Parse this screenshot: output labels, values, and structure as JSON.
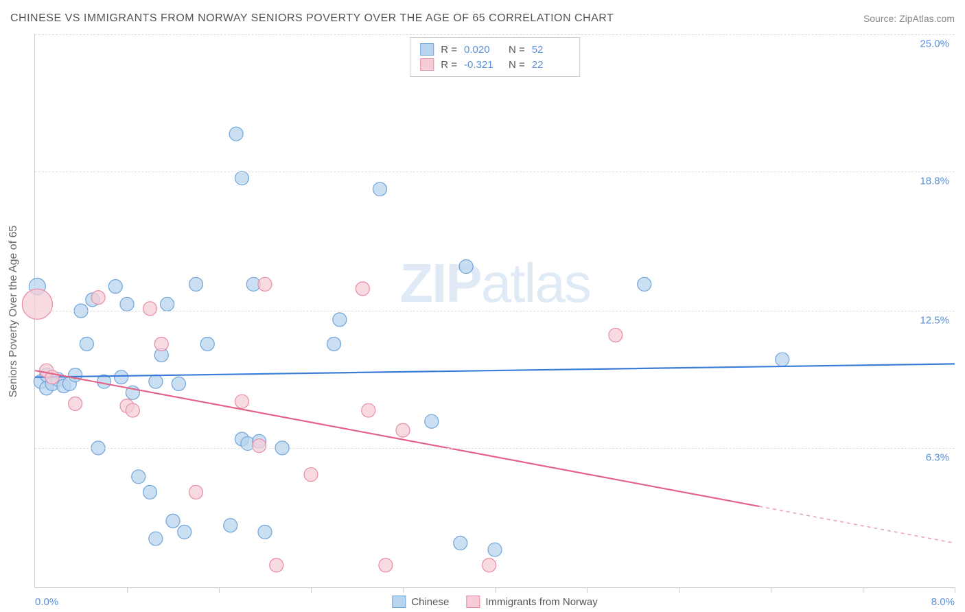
{
  "title": "CHINESE VS IMMIGRANTS FROM NORWAY SENIORS POVERTY OVER THE AGE OF 65 CORRELATION CHART",
  "source": "Source: ZipAtlas.com",
  "watermark_a": "ZIP",
  "watermark_b": "atlas",
  "y_axis_label": "Seniors Poverty Over the Age of 65",
  "chart": {
    "type": "scatter",
    "xlim": [
      0.0,
      8.0
    ],
    "ylim": [
      0.0,
      25.0
    ],
    "x_ticks": [
      0.8,
      1.6,
      2.4,
      3.2,
      4.0,
      4.8,
      5.6,
      6.4,
      7.2,
      8.0
    ],
    "x_min_label": "0.0%",
    "x_max_label": "8.0%",
    "y_gridlines": [
      6.3,
      12.5,
      18.8,
      25.0
    ],
    "y_tick_labels": [
      "6.3%",
      "12.5%",
      "18.8%",
      "25.0%"
    ],
    "background_color": "#ffffff",
    "grid_color": "#dddddd",
    "axis_color": "#cccccc",
    "tick_label_color": "#5b8fd6",
    "series": [
      {
        "name": "Chinese",
        "color_fill": "#b9d4ef",
        "color_stroke": "#6fa4d9",
        "line_color": "#3b7dd8",
        "r_value": "0.020",
        "n_value": "52",
        "regression": {
          "x1": 0.0,
          "y1": 9.5,
          "x2": 8.0,
          "y2": 10.1,
          "dash_from_x": 8.0
        },
        "marker_radius": 10,
        "points": [
          {
            "x": 0.02,
            "y": 13.6,
            "r": 12
          },
          {
            "x": 0.05,
            "y": 9.3,
            "r": 10
          },
          {
            "x": 0.1,
            "y": 9.0,
            "r": 10
          },
          {
            "x": 0.1,
            "y": 9.6,
            "r": 10
          },
          {
            "x": 0.15,
            "y": 9.2,
            "r": 10
          },
          {
            "x": 0.2,
            "y": 9.4,
            "r": 10
          },
          {
            "x": 0.25,
            "y": 9.1,
            "r": 10
          },
          {
            "x": 0.3,
            "y": 9.2,
            "r": 10
          },
          {
            "x": 0.35,
            "y": 9.6,
            "r": 10
          },
          {
            "x": 0.4,
            "y": 12.5,
            "r": 10
          },
          {
            "x": 0.45,
            "y": 11.0,
            "r": 10
          },
          {
            "x": 0.5,
            "y": 13.0,
            "r": 10
          },
          {
            "x": 0.55,
            "y": 6.3,
            "r": 10
          },
          {
            "x": 0.6,
            "y": 9.3,
            "r": 10
          },
          {
            "x": 0.7,
            "y": 13.6,
            "r": 10
          },
          {
            "x": 0.75,
            "y": 9.5,
            "r": 10
          },
          {
            "x": 0.8,
            "y": 12.8,
            "r": 10
          },
          {
            "x": 0.85,
            "y": 8.8,
            "r": 10
          },
          {
            "x": 0.9,
            "y": 5.0,
            "r": 10
          },
          {
            "x": 1.0,
            "y": 4.3,
            "r": 10
          },
          {
            "x": 1.05,
            "y": 9.3,
            "r": 10
          },
          {
            "x": 1.05,
            "y": 2.2,
            "r": 10
          },
          {
            "x": 1.1,
            "y": 10.5,
            "r": 10
          },
          {
            "x": 1.15,
            "y": 12.8,
            "r": 10
          },
          {
            "x": 1.2,
            "y": 3.0,
            "r": 10
          },
          {
            "x": 1.25,
            "y": 9.2,
            "r": 10
          },
          {
            "x": 1.3,
            "y": 2.5,
            "r": 10
          },
          {
            "x": 1.4,
            "y": 13.7,
            "r": 10
          },
          {
            "x": 1.5,
            "y": 11.0,
            "r": 10
          },
          {
            "x": 1.7,
            "y": 2.8,
            "r": 10
          },
          {
            "x": 1.75,
            "y": 20.5,
            "r": 10
          },
          {
            "x": 1.8,
            "y": 6.7,
            "r": 10
          },
          {
            "x": 1.8,
            "y": 18.5,
            "r": 10
          },
          {
            "x": 1.85,
            "y": 6.5,
            "r": 10
          },
          {
            "x": 1.9,
            "y": 13.7,
            "r": 10
          },
          {
            "x": 1.95,
            "y": 6.6,
            "r": 10
          },
          {
            "x": 2.0,
            "y": 2.5,
            "r": 10
          },
          {
            "x": 2.15,
            "y": 6.3,
            "r": 10
          },
          {
            "x": 2.6,
            "y": 11.0,
            "r": 10
          },
          {
            "x": 2.65,
            "y": 12.1,
            "r": 10
          },
          {
            "x": 3.0,
            "y": 18.0,
            "r": 10
          },
          {
            "x": 3.45,
            "y": 7.5,
            "r": 10
          },
          {
            "x": 3.7,
            "y": 2.0,
            "r": 10
          },
          {
            "x": 3.75,
            "y": 14.5,
            "r": 10
          },
          {
            "x": 4.0,
            "y": 1.7,
            "r": 10
          },
          {
            "x": 5.3,
            "y": 13.7,
            "r": 10
          },
          {
            "x": 6.5,
            "y": 10.3,
            "r": 10
          }
        ]
      },
      {
        "name": "Immigrants from Norway",
        "color_fill": "#f6cdd7",
        "color_stroke": "#e88ba5",
        "line_color": "#e36387",
        "r_value": "-0.321",
        "n_value": "22",
        "regression": {
          "x1": 0.0,
          "y1": 9.8,
          "x2": 8.0,
          "y2": 2.0,
          "dash_from_x": 6.3
        },
        "marker_radius": 10,
        "points": [
          {
            "x": 0.02,
            "y": 12.8,
            "r": 22
          },
          {
            "x": 0.1,
            "y": 9.8,
            "r": 10
          },
          {
            "x": 0.15,
            "y": 9.5,
            "r": 10
          },
          {
            "x": 0.35,
            "y": 8.3,
            "r": 10
          },
          {
            "x": 0.55,
            "y": 13.1,
            "r": 10
          },
          {
            "x": 0.8,
            "y": 8.2,
            "r": 10
          },
          {
            "x": 0.85,
            "y": 8.0,
            "r": 10
          },
          {
            "x": 1.0,
            "y": 12.6,
            "r": 10
          },
          {
            "x": 1.1,
            "y": 11.0,
            "r": 10
          },
          {
            "x": 1.4,
            "y": 4.3,
            "r": 10
          },
          {
            "x": 1.8,
            "y": 8.4,
            "r": 10
          },
          {
            "x": 1.95,
            "y": 6.4,
            "r": 10
          },
          {
            "x": 2.0,
            "y": 13.7,
            "r": 10
          },
          {
            "x": 2.1,
            "y": 1.0,
            "r": 10
          },
          {
            "x": 2.4,
            "y": 5.1,
            "r": 10
          },
          {
            "x": 2.85,
            "y": 13.5,
            "r": 10
          },
          {
            "x": 2.9,
            "y": 8.0,
            "r": 10
          },
          {
            "x": 3.05,
            "y": 1.0,
            "r": 10
          },
          {
            "x": 3.2,
            "y": 7.1,
            "r": 10
          },
          {
            "x": 3.95,
            "y": 1.0,
            "r": 10
          },
          {
            "x": 5.05,
            "y": 11.4,
            "r": 10
          }
        ]
      }
    ]
  },
  "legend_top": {
    "r_label": "R =",
    "n_label": "N ="
  },
  "legend_bottom_labels": [
    "Chinese",
    "Immigrants from Norway"
  ]
}
